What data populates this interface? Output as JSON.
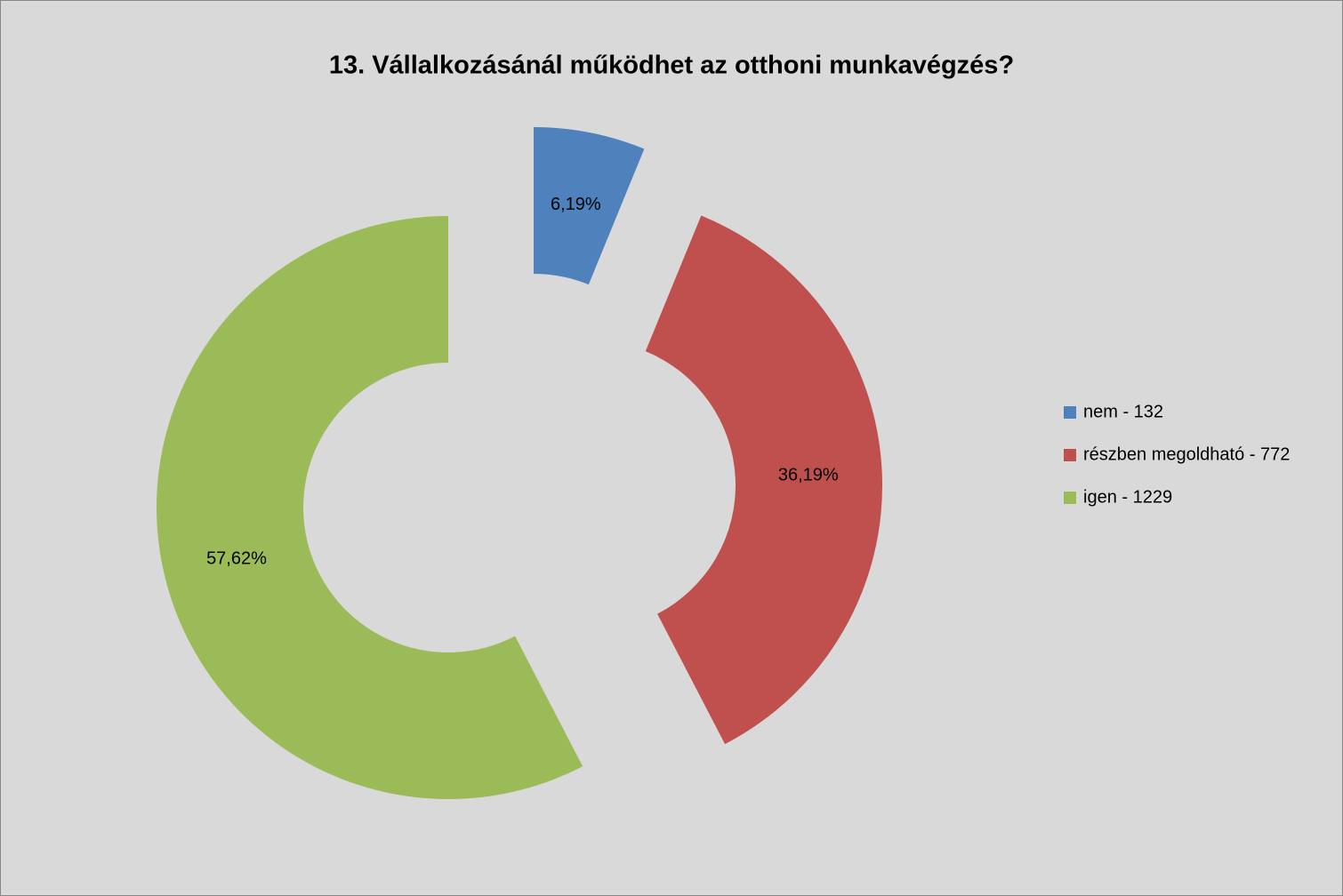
{
  "chart_data": {
    "type": "donut",
    "title": "13. Vállalkozásánál működhet az otthoni munkavégzés?",
    "categories": [
      "nem - 132",
      "részben megoldható - 772",
      "igen - 1229"
    ],
    "values": [
      6.19,
      36.19,
      57.62
    ],
    "value_labels": [
      "6,19%",
      "36,19%",
      "57,62%"
    ],
    "colors": [
      "#4f81bd",
      "#c0504d",
      "#9bbb59"
    ],
    "legend": "right"
  }
}
